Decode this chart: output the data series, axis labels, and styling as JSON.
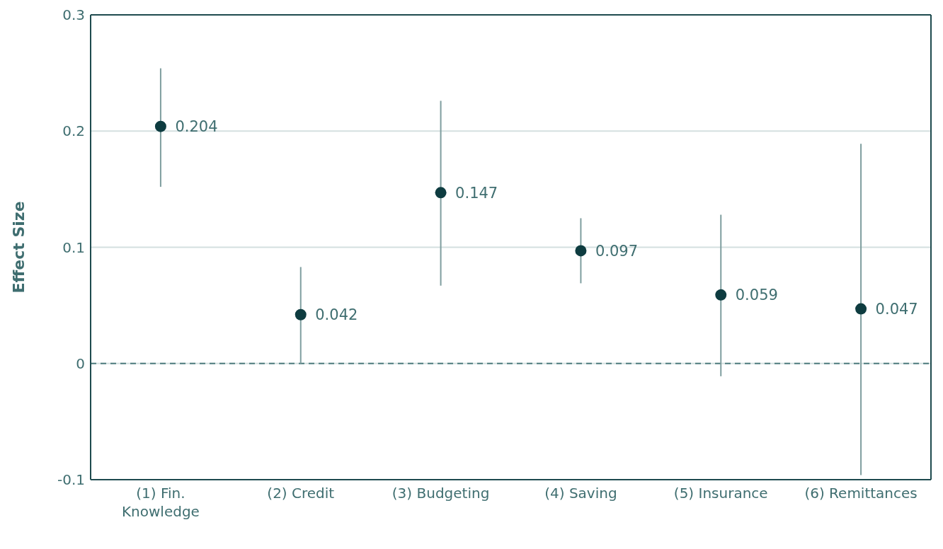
{
  "chart_data": {
    "type": "scatter",
    "ylabel": "Effect Size",
    "categories": [
      "(1) Fin. Knowledge",
      "(2) Credit",
      "(3) Budgeting",
      "(4) Saving",
      "(5) Insurance",
      "(6) Remittances"
    ],
    "values": [
      0.204,
      0.042,
      0.147,
      0.097,
      0.059,
      0.047
    ],
    "errors": [
      [
        0.152,
        0.254
      ],
      [
        0.0,
        0.083
      ],
      [
        0.067,
        0.226
      ],
      [
        0.069,
        0.125
      ],
      [
        -0.011,
        0.128
      ],
      [
        -0.096,
        0.189
      ]
    ],
    "color": "#0e3c40",
    "ylim": [
      -0.1,
      0.3
    ],
    "yticks": [
      -0.1,
      0,
      0.1,
      0.2,
      0.3
    ],
    "grid": "y",
    "marker": "circle",
    "data_labels": true,
    "ref_lines": [
      {
        "axis": "y",
        "value": 0,
        "color": "#4f7c7e",
        "line_style": "dashed"
      }
    ]
  }
}
